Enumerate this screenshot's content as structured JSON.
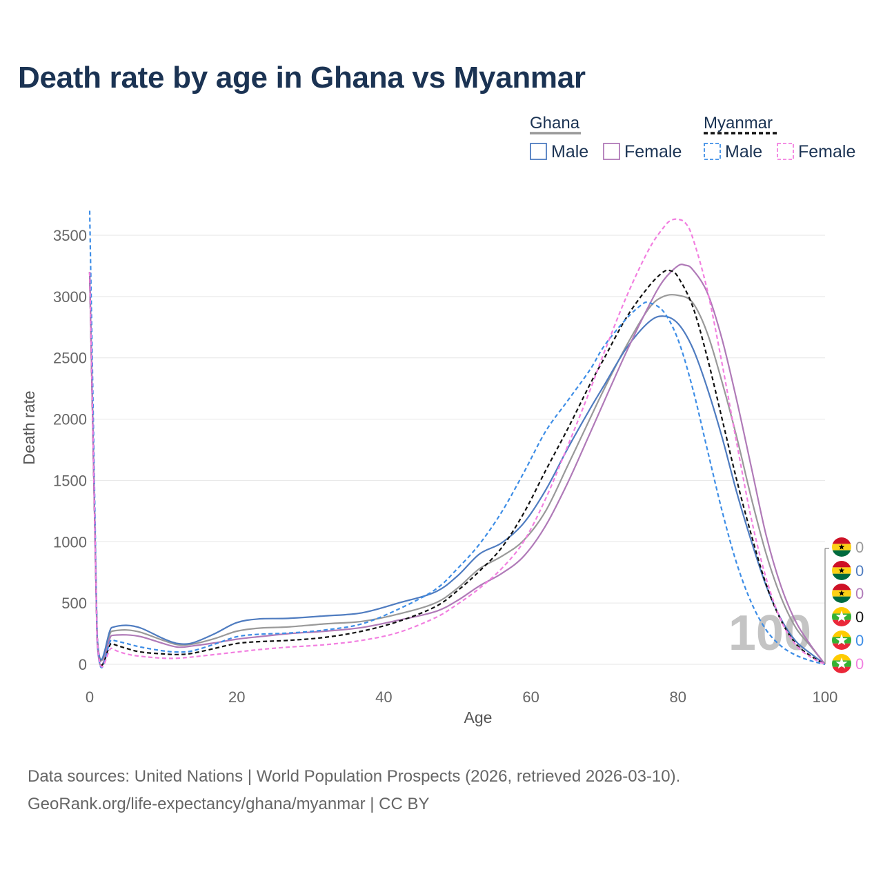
{
  "title": "Death rate by age in Ghana vs Myanmar",
  "legend": {
    "groups": [
      {
        "name": "Ghana",
        "line_color": "#999999",
        "dash": false,
        "items": [
          {
            "label": "Male",
            "color": "#4f7cc0"
          },
          {
            "label": "Female",
            "color": "#b07ab8"
          }
        ]
      },
      {
        "name": "Myanmar",
        "line_color": "#111111",
        "dash": true,
        "items": [
          {
            "label": "Male",
            "color": "#3d8de6"
          },
          {
            "label": "Female",
            "color": "#f27fe0"
          }
        ]
      }
    ]
  },
  "footer": {
    "line1": "Data sources: United Nations | World Population Prospects (2026, retrieved 2026-03-10).",
    "line2": "GeoRank.org/life-expectancy/ghana/myanmar | CC BY"
  },
  "watermark": "100",
  "chart_data": {
    "type": "line",
    "title": "Death rate by age in Ghana vs Myanmar",
    "xlabel": "Age",
    "ylabel": "Death rate",
    "xlim": [
      0,
      100
    ],
    "ylim": [
      0,
      3650
    ],
    "xticks": [
      0,
      20,
      40,
      60,
      80,
      100
    ],
    "yticks": [
      0,
      500,
      1000,
      1500,
      2000,
      2500,
      3000,
      3500
    ],
    "grid": true,
    "series": [
      {
        "name": "Ghana (total)",
        "color": "#999999",
        "dash": false,
        "flag": "ghana",
        "end_value": "0",
        "points": [
          [
            0,
            3200
          ],
          [
            1,
            240
          ],
          [
            3,
            270
          ],
          [
            5,
            280
          ],
          [
            7,
            260
          ],
          [
            10,
            195
          ],
          [
            12,
            160
          ],
          [
            14,
            165
          ],
          [
            17,
            210
          ],
          [
            20,
            270
          ],
          [
            23,
            295
          ],
          [
            27,
            305
          ],
          [
            32,
            330
          ],
          [
            37,
            350
          ],
          [
            42,
            410
          ],
          [
            47,
            500
          ],
          [
            50,
            620
          ],
          [
            53,
            780
          ],
          [
            56,
            880
          ],
          [
            59,
            1010
          ],
          [
            62,
            1250
          ],
          [
            65,
            1620
          ],
          [
            68,
            2000
          ],
          [
            70,
            2250
          ],
          [
            73,
            2600
          ],
          [
            76,
            2900
          ],
          [
            78,
            3000
          ],
          [
            80,
            3010
          ],
          [
            82,
            2950
          ],
          [
            84,
            2700
          ],
          [
            86,
            2300
          ],
          [
            88,
            1850
          ],
          [
            90,
            1350
          ],
          [
            92,
            900
          ],
          [
            94,
            550
          ],
          [
            96,
            300
          ],
          [
            98,
            150
          ],
          [
            100,
            0
          ]
        ]
      },
      {
        "name": "Ghana Male",
        "color": "#4f7cc0",
        "dash": false,
        "flag": "ghana",
        "end_value": "0",
        "points": [
          [
            0,
            3200
          ],
          [
            1,
            240
          ],
          [
            3,
            300
          ],
          [
            5,
            318
          ],
          [
            7,
            295
          ],
          [
            10,
            210
          ],
          [
            12,
            170
          ],
          [
            14,
            175
          ],
          [
            17,
            250
          ],
          [
            20,
            340
          ],
          [
            23,
            370
          ],
          [
            27,
            375
          ],
          [
            32,
            395
          ],
          [
            37,
            420
          ],
          [
            42,
            500
          ],
          [
            47,
            590
          ],
          [
            50,
            720
          ],
          [
            53,
            900
          ],
          [
            56,
            990
          ],
          [
            59,
            1150
          ],
          [
            62,
            1420
          ],
          [
            65,
            1760
          ],
          [
            68,
            2080
          ],
          [
            70,
            2280
          ],
          [
            73,
            2580
          ],
          [
            76,
            2790
          ],
          [
            78,
            2840
          ],
          [
            80,
            2780
          ],
          [
            82,
            2580
          ],
          [
            84,
            2250
          ],
          [
            86,
            1850
          ],
          [
            88,
            1400
          ],
          [
            90,
            1000
          ],
          [
            92,
            640
          ],
          [
            94,
            370
          ],
          [
            96,
            190
          ],
          [
            98,
            90
          ],
          [
            100,
            0
          ]
        ]
      },
      {
        "name": "Ghana Female",
        "color": "#b07ab8",
        "dash": false,
        "flag": "ghana",
        "end_value": "0",
        "points": [
          [
            0,
            3200
          ],
          [
            1,
            200
          ],
          [
            3,
            235
          ],
          [
            5,
            240
          ],
          [
            7,
            225
          ],
          [
            10,
            170
          ],
          [
            12,
            140
          ],
          [
            14,
            150
          ],
          [
            17,
            175
          ],
          [
            20,
            205
          ],
          [
            23,
            225
          ],
          [
            27,
            250
          ],
          [
            32,
            270
          ],
          [
            37,
            300
          ],
          [
            42,
            360
          ],
          [
            47,
            430
          ],
          [
            50,
            520
          ],
          [
            53,
            640
          ],
          [
            56,
            740
          ],
          [
            59,
            880
          ],
          [
            62,
            1130
          ],
          [
            65,
            1480
          ],
          [
            68,
            1880
          ],
          [
            70,
            2150
          ],
          [
            73,
            2550
          ],
          [
            76,
            2920
          ],
          [
            78,
            3130
          ],
          [
            80,
            3250
          ],
          [
            81,
            3255
          ],
          [
            82,
            3220
          ],
          [
            84,
            3030
          ],
          [
            86,
            2650
          ],
          [
            88,
            2150
          ],
          [
            90,
            1600
          ],
          [
            92,
            1050
          ],
          [
            94,
            640
          ],
          [
            96,
            350
          ],
          [
            98,
            160
          ],
          [
            100,
            0
          ]
        ]
      },
      {
        "name": "Myanmar (total)",
        "color": "#111111",
        "dash": true,
        "flag": "myanmar",
        "end_value": "0",
        "points": [
          [
            0,
            3200
          ],
          [
            1,
            230
          ],
          [
            3,
            170
          ],
          [
            5,
            130
          ],
          [
            7,
            100
          ],
          [
            10,
            85
          ],
          [
            12,
            80
          ],
          [
            14,
            90
          ],
          [
            17,
            130
          ],
          [
            20,
            170
          ],
          [
            23,
            185
          ],
          [
            27,
            195
          ],
          [
            32,
            220
          ],
          [
            37,
            270
          ],
          [
            42,
            350
          ],
          [
            47,
            470
          ],
          [
            50,
            600
          ],
          [
            53,
            760
          ],
          [
            56,
            950
          ],
          [
            59,
            1230
          ],
          [
            62,
            1580
          ],
          [
            65,
            1920
          ],
          [
            68,
            2280
          ],
          [
            70,
            2500
          ],
          [
            73,
            2830
          ],
          [
            76,
            3080
          ],
          [
            78,
            3200
          ],
          [
            79,
            3210
          ],
          [
            80,
            3160
          ],
          [
            82,
            2920
          ],
          [
            84,
            2500
          ],
          [
            86,
            2000
          ],
          [
            88,
            1500
          ],
          [
            90,
            1050
          ],
          [
            92,
            650
          ],
          [
            94,
            360
          ],
          [
            96,
            170
          ],
          [
            98,
            70
          ],
          [
            100,
            0
          ]
        ]
      },
      {
        "name": "Myanmar Male",
        "color": "#3d8de6",
        "dash": true,
        "flag": "myanmar",
        "end_value": "0",
        "points": [
          [
            0,
            3700
          ],
          [
            1,
            240
          ],
          [
            3,
            200
          ],
          [
            5,
            170
          ],
          [
            7,
            140
          ],
          [
            10,
            110
          ],
          [
            12,
            100
          ],
          [
            14,
            110
          ],
          [
            17,
            165
          ],
          [
            20,
            225
          ],
          [
            23,
            245
          ],
          [
            27,
            255
          ],
          [
            32,
            280
          ],
          [
            37,
            330
          ],
          [
            42,
            450
          ],
          [
            47,
            610
          ],
          [
            50,
            780
          ],
          [
            53,
            980
          ],
          [
            56,
            1240
          ],
          [
            59,
            1560
          ],
          [
            62,
            1900
          ],
          [
            65,
            2150
          ],
          [
            68,
            2400
          ],
          [
            70,
            2600
          ],
          [
            73,
            2820
          ],
          [
            75,
            2930
          ],
          [
            76,
            2950
          ],
          [
            78,
            2880
          ],
          [
            80,
            2650
          ],
          [
            82,
            2250
          ],
          [
            84,
            1750
          ],
          [
            86,
            1250
          ],
          [
            88,
            820
          ],
          [
            90,
            500
          ],
          [
            92,
            280
          ],
          [
            94,
            150
          ],
          [
            96,
            75
          ],
          [
            98,
            30
          ],
          [
            100,
            0
          ]
        ]
      },
      {
        "name": "Myanmar Female",
        "color": "#f27fe0",
        "dash": true,
        "flag": "myanmar",
        "end_value": "0",
        "points": [
          [
            0,
            3200
          ],
          [
            1,
            230
          ],
          [
            3,
            130
          ],
          [
            5,
            85
          ],
          [
            7,
            65
          ],
          [
            10,
            50
          ],
          [
            12,
            50
          ],
          [
            14,
            60
          ],
          [
            17,
            80
          ],
          [
            20,
            100
          ],
          [
            23,
            120
          ],
          [
            27,
            140
          ],
          [
            32,
            160
          ],
          [
            37,
            195
          ],
          [
            42,
            260
          ],
          [
            47,
            380
          ],
          [
            50,
            490
          ],
          [
            53,
            620
          ],
          [
            56,
            780
          ],
          [
            59,
            1000
          ],
          [
            62,
            1350
          ],
          [
            65,
            1780
          ],
          [
            68,
            2230
          ],
          [
            70,
            2550
          ],
          [
            73,
            3000
          ],
          [
            76,
            3380
          ],
          [
            78,
            3560
          ],
          [
            79,
            3620
          ],
          [
            80,
            3630
          ],
          [
            81,
            3600
          ],
          [
            82,
            3480
          ],
          [
            84,
            3050
          ],
          [
            86,
            2450
          ],
          [
            88,
            1800
          ],
          [
            90,
            1180
          ],
          [
            92,
            700
          ],
          [
            94,
            360
          ],
          [
            96,
            160
          ],
          [
            98,
            60
          ],
          [
            100,
            0
          ]
        ]
      }
    ]
  }
}
